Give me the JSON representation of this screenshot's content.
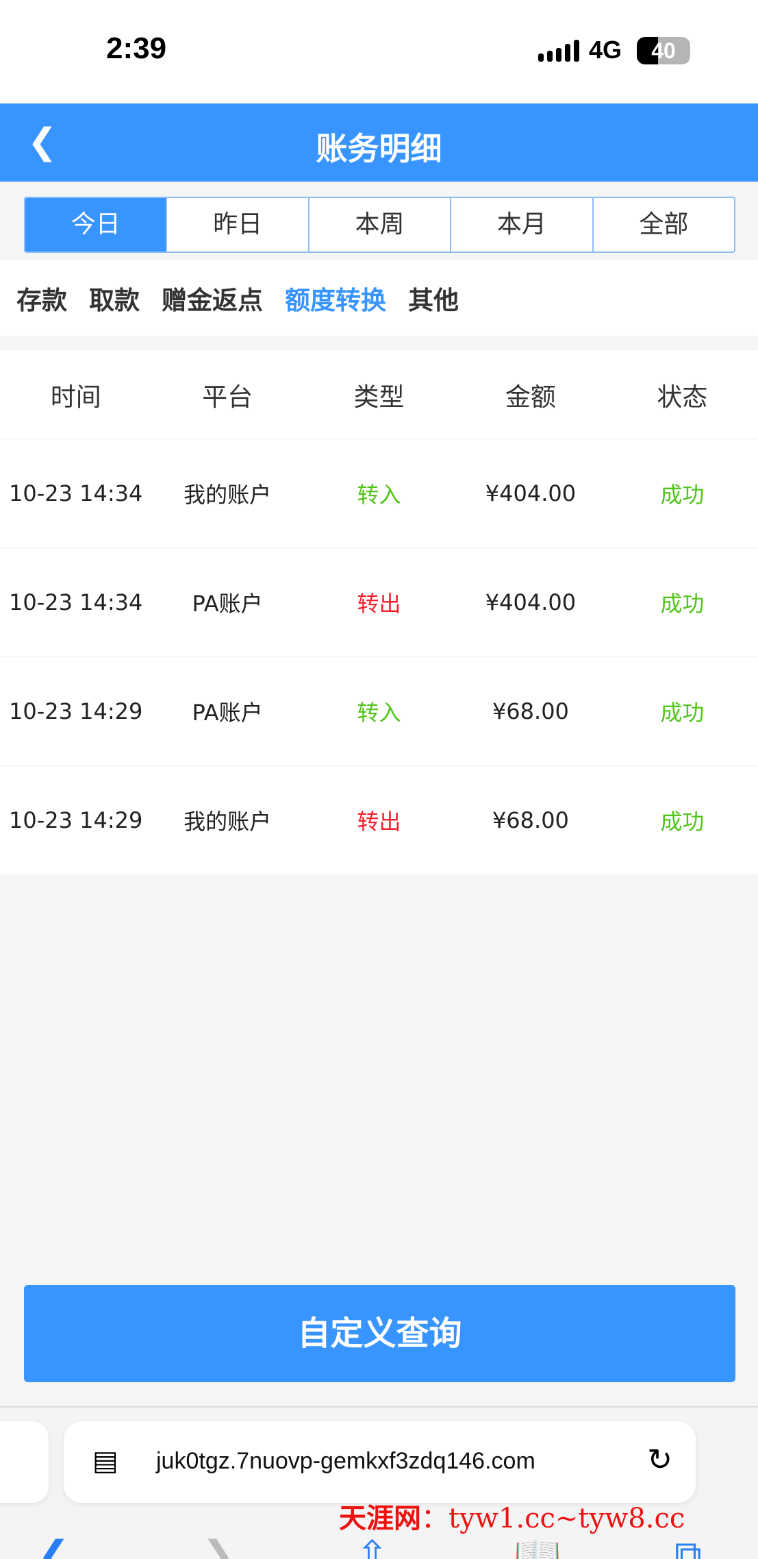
{
  "status_bar": {
    "time": "2:39",
    "network": "4G",
    "battery": "40",
    "battery_level": 0.4
  },
  "header": {
    "title": "账务明细"
  },
  "period_tabs": [
    {
      "label": "今日",
      "active": true
    },
    {
      "label": "昨日"
    },
    {
      "label": "本周"
    },
    {
      "label": "本月"
    },
    {
      "label": "全部"
    }
  ],
  "category_tabs": [
    {
      "label": "存款"
    },
    {
      "label": "取款"
    },
    {
      "label": "赠金返点"
    },
    {
      "label": "额度转换",
      "active": true
    },
    {
      "label": "其他"
    }
  ],
  "table": {
    "headers": [
      "时间",
      "平台",
      "类型",
      "金额",
      "状态"
    ],
    "rows": [
      {
        "time": "10-23 14:34",
        "platform": "我的账户",
        "type": "转入",
        "amount": "¥404.00",
        "status": "成功"
      },
      {
        "time": "10-23 14:34",
        "platform": "PA账户",
        "type": "转出",
        "amount": "¥404.00",
        "status": "成功"
      },
      {
        "time": "10-23 14:29",
        "platform": "PA账户",
        "type": "转入",
        "amount": "¥68.00",
        "status": "成功"
      },
      {
        "time": "10-23 14:29",
        "platform": "我的账户",
        "type": "转出",
        "amount": "¥68.00",
        "status": "成功"
      }
    ]
  },
  "custom_query_label": "自定义查询",
  "browser": {
    "url": "juk0tgz.7nuovp-gemkxf3zdq146.com"
  },
  "watermark": {
    "name": "天涯网",
    "sep": "：",
    "text": "tyw1.cc~tyw8.cc"
  },
  "colors": {
    "accent": "#3894ff",
    "in": "#52c41a",
    "out": "#f5222d",
    "success": "#52c41a"
  }
}
